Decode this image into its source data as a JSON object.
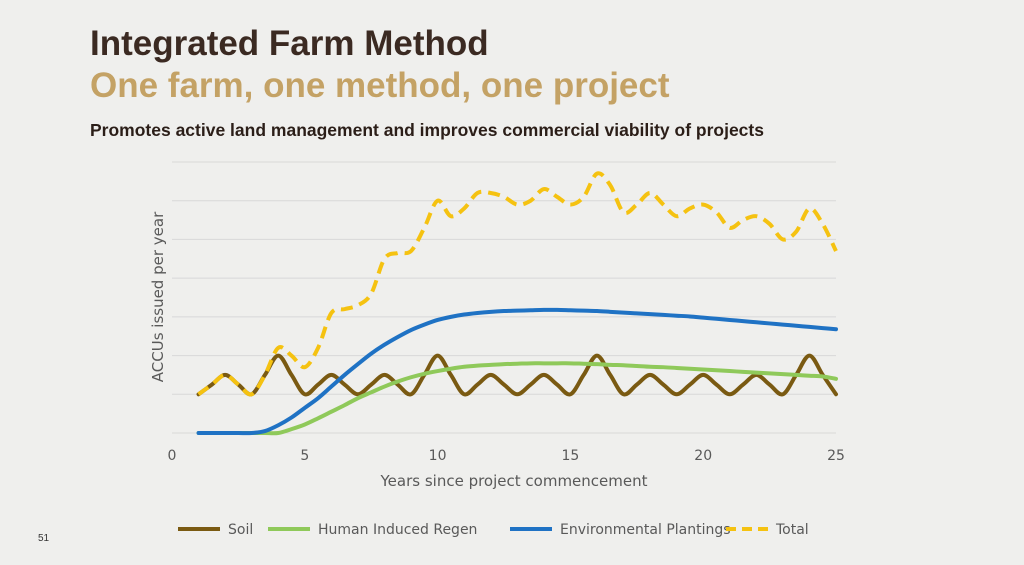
{
  "slide": {
    "title": "Integrated Farm Method",
    "subtitle": "One farm, one method, one project",
    "tagline": "Promotes active land management and improves commercial viability of projects",
    "page_number": "51"
  },
  "colors": {
    "title": "#3b2a22",
    "subtitle": "#c4a265",
    "soil": "#7a5a12",
    "regen": "#8fc95a",
    "plantings": "#1f72c4",
    "total": "#f5c211",
    "grid": "#d8d8d8"
  },
  "chart_data": {
    "type": "line",
    "xlabel": "Years since project commencement",
    "ylabel": "ACCUs issued per year",
    "xlim": [
      0,
      25
    ],
    "ylim": [
      0,
      7
    ],
    "x_ticks": [
      0,
      5,
      10,
      15,
      20,
      25
    ],
    "grid": true,
    "legend_position": "bottom",
    "x": [
      1,
      1.5,
      2,
      2.5,
      3,
      3.5,
      4,
      4.5,
      5,
      5.5,
      6,
      6.5,
      7,
      7.5,
      8,
      8.5,
      9,
      9.5,
      10,
      10.5,
      11,
      11.5,
      12,
      12.5,
      13,
      13.5,
      14,
      14.5,
      15,
      15.5,
      16,
      16.5,
      17,
      17.5,
      18,
      18.5,
      19,
      19.5,
      20,
      20.5,
      21,
      21.5,
      22,
      22.5,
      23,
      23.5,
      24,
      24.5,
      25
    ],
    "series": [
      {
        "name": "Soil",
        "color": "#7a5a12",
        "dash": false,
        "values": [
          1,
          1.25,
          1.5,
          1.25,
          1,
          1.5,
          2,
          1.5,
          1,
          1.25,
          1.5,
          1.25,
          1,
          1.25,
          1.5,
          1.25,
          1,
          1.5,
          2,
          1.5,
          1,
          1.25,
          1.5,
          1.25,
          1,
          1.25,
          1.5,
          1.25,
          1,
          1.5,
          2,
          1.5,
          1,
          1.25,
          1.5,
          1.25,
          1,
          1.25,
          1.5,
          1.25,
          1,
          1.25,
          1.5,
          1.25,
          1,
          1.5,
          2,
          1.5,
          1
        ]
      },
      {
        "name": "Human Induced Regen",
        "color": "#8fc95a",
        "dash": false,
        "values": [
          0,
          0,
          0,
          0,
          0,
          0,
          0,
          0.1,
          0.22,
          0.38,
          0.55,
          0.72,
          0.9,
          1.05,
          1.2,
          1.33,
          1.44,
          1.53,
          1.6,
          1.66,
          1.71,
          1.74,
          1.76,
          1.78,
          1.79,
          1.8,
          1.8,
          1.8,
          1.8,
          1.79,
          1.78,
          1.76,
          1.75,
          1.73,
          1.71,
          1.7,
          1.68,
          1.66,
          1.64,
          1.62,
          1.6,
          1.58,
          1.56,
          1.54,
          1.52,
          1.5,
          1.48,
          1.46,
          1.4
        ]
      },
      {
        "name": "Environmental Plantings",
        "color": "#1f72c4",
        "dash": false,
        "values": [
          0,
          0,
          0,
          0,
          0,
          0.05,
          0.2,
          0.4,
          0.65,
          0.9,
          1.2,
          1.5,
          1.78,
          2.05,
          2.28,
          2.48,
          2.66,
          2.8,
          2.92,
          3.0,
          3.06,
          3.1,
          3.13,
          3.15,
          3.16,
          3.17,
          3.18,
          3.18,
          3.17,
          3.16,
          3.15,
          3.13,
          3.11,
          3.09,
          3.07,
          3.05,
          3.03,
          3.01,
          2.98,
          2.95,
          2.92,
          2.89,
          2.86,
          2.83,
          2.8,
          2.77,
          2.74,
          2.71,
          2.68
        ]
      },
      {
        "name": "Total",
        "color": "#f5c211",
        "dash": true,
        "values": [
          1,
          1.25,
          1.5,
          1.25,
          1,
          1.5,
          2.2,
          2,
          1.7,
          2.2,
          3.1,
          3.2,
          3.3,
          3.6,
          4.5,
          4.65,
          4.7,
          5.3,
          6,
          5.6,
          5.8,
          6.2,
          6.2,
          6.1,
          5.9,
          6,
          6.3,
          6.1,
          5.9,
          6.1,
          6.7,
          6.4,
          5.7,
          5.9,
          6.2,
          5.9,
          5.6,
          5.8,
          5.9,
          5.7,
          5.3,
          5.5,
          5.6,
          5.4,
          5,
          5.2,
          5.8,
          5.4,
          4.7
        ]
      }
    ]
  }
}
